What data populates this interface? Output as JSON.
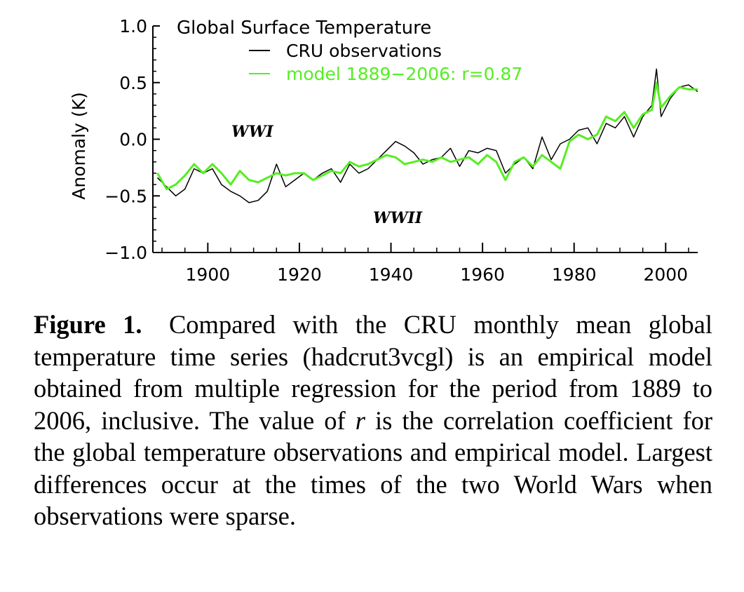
{
  "chart_data": {
    "type": "line",
    "title": "Global Surface Temperature",
    "xlabel": "",
    "ylabel": "Anomaly (K)",
    "xlim": [
      1888,
      2007
    ],
    "ylim": [
      -1.0,
      1.0
    ],
    "xticks": [
      1900,
      1920,
      1940,
      1960,
      1980,
      2000
    ],
    "yticks": [
      -1.0,
      -0.5,
      0.0,
      0.5,
      1.0
    ],
    "ytick_labels": [
      "−1.0",
      "−0.5",
      "0.0",
      "0.5",
      "1.0"
    ],
    "legend_position": "top-left",
    "grid": false,
    "annotations": [
      {
        "text": "WWI",
        "x": 1917,
        "y": 0.05
      },
      {
        "text": "WWII",
        "x": 1945,
        "y": -0.7
      }
    ],
    "series": [
      {
        "name": "CRU observations",
        "color": "#000000",
        "x": [
          1889,
          1891,
          1893,
          1895,
          1897,
          1899,
          1901,
          1903,
          1905,
          1907,
          1909,
          1911,
          1913,
          1915,
          1917,
          1919,
          1921,
          1923,
          1925,
          1927,
          1929,
          1931,
          1933,
          1935,
          1937,
          1939,
          1941,
          1943,
          1945,
          1947,
          1949,
          1951,
          1953,
          1955,
          1957,
          1959,
          1961,
          1963,
          1965,
          1967,
          1969,
          1971,
          1973,
          1975,
          1977,
          1979,
          1981,
          1983,
          1985,
          1987,
          1989,
          1991,
          1993,
          1995,
          1997,
          1998,
          1999,
          2001,
          2003,
          2005,
          2007
        ],
        "y": [
          -0.34,
          -0.42,
          -0.5,
          -0.44,
          -0.26,
          -0.3,
          -0.26,
          -0.4,
          -0.46,
          -0.5,
          -0.56,
          -0.54,
          -0.46,
          -0.22,
          -0.42,
          -0.36,
          -0.3,
          -0.36,
          -0.3,
          -0.26,
          -0.38,
          -0.22,
          -0.3,
          -0.26,
          -0.18,
          -0.1,
          -0.02,
          -0.06,
          -0.12,
          -0.22,
          -0.18,
          -0.16,
          -0.08,
          -0.24,
          -0.1,
          -0.12,
          -0.08,
          -0.1,
          -0.3,
          -0.22,
          -0.16,
          -0.26,
          0.02,
          -0.18,
          -0.04,
          0.0,
          0.08,
          0.1,
          -0.04,
          0.14,
          0.1,
          0.2,
          0.02,
          0.2,
          0.3,
          0.62,
          0.2,
          0.36,
          0.46,
          0.48,
          0.42
        ]
      },
      {
        "name": "model 1889−2006: r=0.87",
        "color": "#55ee22",
        "x": [
          1889,
          1891,
          1893,
          1895,
          1897,
          1899,
          1901,
          1903,
          1905,
          1907,
          1909,
          1911,
          1913,
          1915,
          1917,
          1919,
          1921,
          1923,
          1925,
          1927,
          1929,
          1931,
          1933,
          1935,
          1937,
          1939,
          1941,
          1943,
          1945,
          1947,
          1949,
          1951,
          1953,
          1955,
          1957,
          1959,
          1961,
          1963,
          1965,
          1967,
          1969,
          1971,
          1973,
          1975,
          1977,
          1979,
          1981,
          1983,
          1985,
          1987,
          1989,
          1991,
          1993,
          1995,
          1997,
          1998,
          1999,
          2001,
          2003,
          2005,
          2007
        ],
        "y": [
          -0.3,
          -0.44,
          -0.4,
          -0.32,
          -0.22,
          -0.3,
          -0.22,
          -0.3,
          -0.4,
          -0.28,
          -0.36,
          -0.38,
          -0.34,
          -0.3,
          -0.32,
          -0.3,
          -0.3,
          -0.36,
          -0.32,
          -0.28,
          -0.3,
          -0.2,
          -0.24,
          -0.22,
          -0.18,
          -0.14,
          -0.16,
          -0.22,
          -0.2,
          -0.18,
          -0.2,
          -0.16,
          -0.2,
          -0.18,
          -0.16,
          -0.22,
          -0.14,
          -0.2,
          -0.36,
          -0.2,
          -0.16,
          -0.24,
          -0.14,
          -0.2,
          -0.26,
          -0.02,
          0.04,
          0.0,
          0.04,
          0.2,
          0.16,
          0.24,
          0.1,
          0.22,
          0.26,
          0.5,
          0.28,
          0.38,
          0.46,
          0.44,
          0.44
        ]
      }
    ]
  },
  "caption": {
    "label": "Figure 1.",
    "text_before_r": "Compared with the CRU monthly mean global temperature time series (hadcrut3vcgl) is an empirical model obtained from multiple regression for the period from 1889 to 2006, inclusive. The value of",
    "r_symbol": "r",
    "text_after_r": "is the correlation coefficient for the global temperature observations and empirical model. Largest differences occur at the times of the two World Wars when observations were sparse."
  }
}
